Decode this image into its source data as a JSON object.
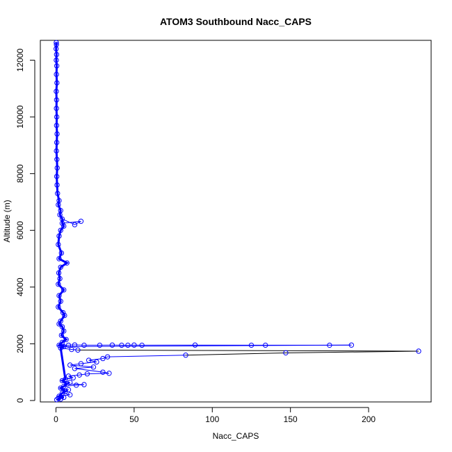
{
  "chart_data": {
    "type": "scatter",
    "title": "ATOM3 Southbound Nacc_CAPS",
    "xlabel": "Nacc_CAPS",
    "ylabel": "Altitude (m)",
    "xlim": [
      -10,
      240
    ],
    "ylim": [
      -50,
      12700
    ],
    "x_ticks": [
      0,
      50,
      100,
      150,
      200
    ],
    "y_ticks": [
      0,
      2000,
      4000,
      6000,
      8000,
      10000,
      12000
    ],
    "grid": false,
    "legend": "none",
    "colors": {
      "points": "#0000ff",
      "lines": "#0000ff",
      "connector": "#000000"
    },
    "series": [
      {
        "style": "points-and-lines",
        "points": [
          [
            0.2,
            12620
          ],
          [
            0.3,
            12550
          ],
          [
            0.1,
            12400
          ],
          [
            0.4,
            12200
          ],
          [
            0.2,
            12000
          ],
          [
            0.5,
            11800
          ],
          [
            0.3,
            11500
          ],
          [
            0.6,
            11200
          ],
          [
            0.2,
            10900
          ],
          [
            0.4,
            10600
          ],
          [
            0.3,
            10300
          ],
          [
            0.5,
            10000
          ],
          [
            0.4,
            9700
          ],
          [
            0.7,
            9400
          ],
          [
            0.5,
            9100
          ],
          [
            0.3,
            8800
          ],
          [
            0.6,
            8500
          ],
          [
            0.8,
            8200
          ],
          [
            0.5,
            7900
          ],
          [
            0.7,
            7600
          ],
          [
            1.0,
            7300
          ],
          [
            2.0,
            7050
          ],
          [
            1.5,
            6900
          ],
          [
            3.0,
            6700
          ],
          [
            2.5,
            6550
          ],
          [
            4.0,
            6400
          ],
          [
            12.0,
            6200
          ],
          [
            16.0,
            6320
          ],
          [
            4.0,
            6250
          ],
          [
            5.0,
            6150
          ],
          [
            3.0,
            6000
          ],
          [
            2.0,
            5800
          ],
          [
            1.5,
            5500
          ],
          [
            3.5,
            5200
          ],
          [
            2.0,
            5000
          ],
          [
            7.0,
            4850
          ],
          [
            3.0,
            4700
          ],
          [
            1.8,
            4500
          ],
          [
            2.5,
            4300
          ],
          [
            1.5,
            4100
          ],
          [
            5.0,
            3900
          ],
          [
            2.0,
            3700
          ],
          [
            3.0,
            3500
          ],
          [
            1.5,
            3300
          ],
          [
            4.5,
            3100
          ],
          [
            5.5,
            3000
          ],
          [
            3.0,
            2800
          ],
          [
            2.0,
            2700
          ],
          [
            4.0,
            2600
          ],
          [
            5.0,
            2450
          ],
          [
            3.5,
            2300
          ],
          [
            6.5,
            2150
          ],
          [
            4.0,
            2050
          ],
          [
            2.0,
            1950
          ],
          [
            8.0,
            1950
          ],
          [
            12.0,
            1960
          ],
          [
            18.0,
            1950
          ],
          [
            28.0,
            1950
          ],
          [
            36.0,
            1955
          ],
          [
            42.0,
            1950
          ],
          [
            46.0,
            1950
          ],
          [
            50.0,
            1955
          ],
          [
            55.0,
            1950
          ],
          [
            89.0,
            1955
          ],
          [
            125.0,
            1950
          ],
          [
            134.0,
            1950
          ],
          [
            175.0,
            1950
          ],
          [
            189.0,
            1955
          ],
          [
            5.0,
            1900
          ],
          [
            3.0,
            1850
          ],
          [
            10.0,
            1800
          ],
          [
            14.0,
            1780
          ],
          [
            232.0,
            1740
          ],
          [
            147.0,
            1680
          ],
          [
            83.0,
            1600
          ],
          [
            33.0,
            1540
          ],
          [
            30.0,
            1480
          ],
          [
            21.0,
            1420
          ],
          [
            26.0,
            1360
          ],
          [
            16.0,
            1300
          ],
          [
            9.0,
            1250
          ],
          [
            24.0,
            1180
          ],
          [
            12.0,
            1130
          ],
          [
            30.0,
            1000
          ],
          [
            34.0,
            960
          ],
          [
            20.0,
            940
          ],
          [
            15.0,
            900
          ],
          [
            8.0,
            860
          ],
          [
            11.0,
            800
          ],
          [
            6.0,
            750
          ],
          [
            4.0,
            700
          ],
          [
            9.0,
            640
          ],
          [
            7.0,
            580
          ],
          [
            18.0,
            560
          ],
          [
            13.0,
            540
          ],
          [
            5.0,
            500
          ],
          [
            3.0,
            440
          ],
          [
            8.0,
            380
          ],
          [
            6.0,
            320
          ],
          [
            4.0,
            260
          ],
          [
            9.0,
            200
          ],
          [
            2.0,
            150
          ],
          [
            5.0,
            110
          ],
          [
            1.5,
            80
          ],
          [
            3.0,
            50
          ],
          [
            0.5,
            30
          ]
        ]
      }
    ]
  }
}
